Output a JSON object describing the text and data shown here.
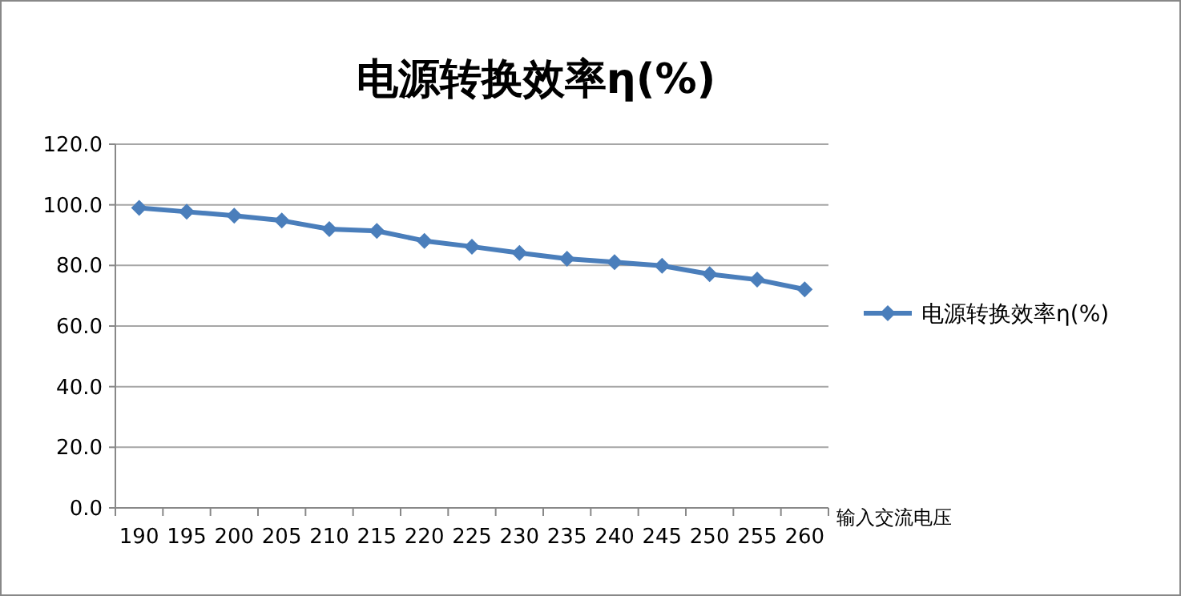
{
  "chart_data": {
    "type": "line",
    "title": "电源转换效率η(%)",
    "xlabel": "输入交流电压",
    "categories": [
      "190",
      "195",
      "200",
      "205",
      "210",
      "215",
      "220",
      "225",
      "230",
      "235",
      "240",
      "245",
      "250",
      "255",
      "260"
    ],
    "series": [
      {
        "name": "电源转换效率η(%)",
        "color": "#4a7ebb",
        "values": [
          99.0,
          97.7,
          96.4,
          94.8,
          92.0,
          91.4,
          88.1,
          86.2,
          84.1,
          82.2,
          81.1,
          79.9,
          77.1,
          75.3,
          72.1
        ]
      }
    ],
    "ylim": [
      0,
      120
    ],
    "yticks": [
      {
        "value": 0,
        "label": "0.0"
      },
      {
        "value": 20,
        "label": "20.0"
      },
      {
        "value": 40,
        "label": "40.0"
      },
      {
        "value": 60,
        "label": "60.0"
      },
      {
        "value": 80,
        "label": "80.0"
      },
      {
        "value": 100,
        "label": "100.0"
      },
      {
        "value": 120,
        "label": "120.0"
      }
    ],
    "grid": "y",
    "legend": "right",
    "marker": "diamond",
    "line_style": "solid"
  }
}
